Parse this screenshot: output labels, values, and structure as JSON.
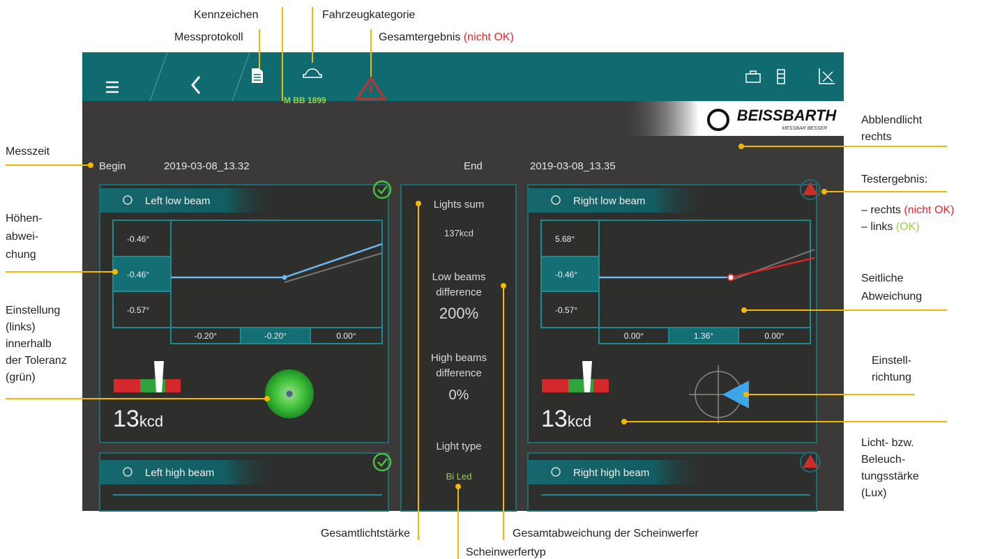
{
  "annotations": {
    "plate": "Kennzeichen",
    "vehicle_category": "Fahrzeugkategorie",
    "report": "Messprotokoll",
    "overall_result": {
      "label": "Gesamtergebnis",
      "status": "(nicht OK)"
    },
    "low_beam_right": [
      "Abblendlicht",
      "rechts"
    ],
    "time": "Messzeit",
    "test_result": {
      "label": "Testergebnis:",
      "right": "– rechts",
      "right_status": "(nicht OK)",
      "left": "– links",
      "left_status": "(OK)"
    },
    "vertical_deviation": [
      "Höhen-",
      "abwei-",
      "chung"
    ],
    "lateral_deviation": [
      "Seitliche",
      "Abweichung"
    ],
    "adjustment": [
      "Einstellung",
      "(links)",
      "innerhalb",
      "der Toleranz",
      "(grün)"
    ],
    "adjust_direction": [
      "Einstell-",
      "richtung"
    ],
    "intensity": [
      "Licht- bzw.",
      "Beleuch-",
      "tungsstärke",
      "(Lux)"
    ],
    "total_intensity": "Gesamtlichtstärke",
    "total_deviation": "Gesamtabweichung der Scheinwerfer",
    "lamp_type": "Scheinwerfertyp"
  },
  "screen": {
    "plate": "M BB 1899",
    "brand": "BEISSBARTH",
    "slogan": "MESSBAR BESSER",
    "begin_label": "Begin",
    "begin": "2019-03-08_13.32",
    "end_label": "End",
    "end": "2019-03-08_13.35",
    "left_low": {
      "title": "Left low beam",
      "vertical": [
        "-0.46°",
        "-0.46°",
        "-0.57°"
      ],
      "horizontal": [
        "-0.20°",
        "-0.20°",
        "0.00°"
      ],
      "intensity": "13",
      "unit": "kcd"
    },
    "right_low": {
      "title": "Right low beam",
      "vertical": [
        "5.68°",
        "-0.46°",
        "-0.57°"
      ],
      "horizontal": [
        "0.00°",
        "1.36°",
        "0.00°"
      ],
      "intensity": "13",
      "unit": "kcd"
    },
    "summary": {
      "lights_sum_label": "Lights sum",
      "lights_sum": "137kcd",
      "low_diff_label": [
        "Low beams",
        "difference"
      ],
      "low_diff": "200%",
      "high_diff_label": [
        "High beams",
        "difference"
      ],
      "high_diff": "0%",
      "light_type_label": "Light type",
      "light_type": "Bi Led"
    },
    "left_high": {
      "title": "Left high beam"
    },
    "right_high": {
      "title": "Right high beam"
    }
  }
}
